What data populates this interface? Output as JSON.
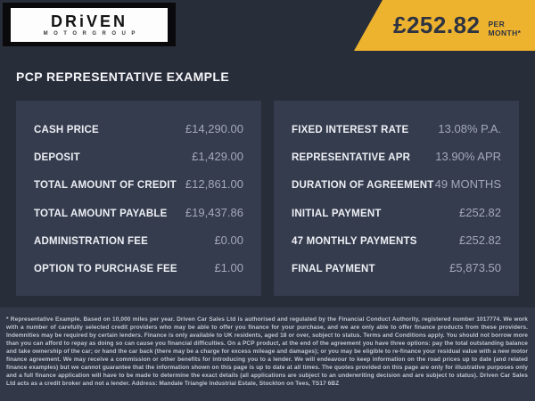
{
  "header": {
    "logo": {
      "brand": "DRiVEN",
      "sub": "MOTORGROUP"
    },
    "price_banner": {
      "amount": "£252.82",
      "period": "PER MONTH*"
    }
  },
  "page_title": "PCP REPRESENTATIVE EXAMPLE",
  "finance": {
    "left_rows": [
      {
        "label": "CASH PRICE",
        "value": "£14,290.00"
      },
      {
        "label": "DEPOSIT",
        "value": "£1,429.00"
      },
      {
        "label": "TOTAL AMOUNT OF CREDIT",
        "value": "£12,861.00"
      },
      {
        "label": "TOTAL AMOUNT PAYABLE",
        "value": "£19,437.86"
      },
      {
        "label": "ADMINISTRATION FEE",
        "value": "£0.00"
      },
      {
        "label": "OPTION TO PURCHASE FEE",
        "value": "£1.00"
      }
    ],
    "right_rows": [
      {
        "label": "FIXED INTEREST RATE",
        "value": "13.08% P.A."
      },
      {
        "label": "REPRESENTATIVE APR",
        "value": "13.90% APR"
      },
      {
        "label": "DURATION OF AGREEMENT",
        "value": "49 MONTHS"
      },
      {
        "label": "INITIAL PAYMENT",
        "value": "£252.82"
      },
      {
        "label": "47 MONTHLY PAYMENTS",
        "value": "£252.82"
      },
      {
        "label": "FINAL PAYMENT",
        "value": "£5,873.50"
      }
    ]
  },
  "footer": {
    "disclaimer": "* Representative Example. Based on 10,000 miles per year. Driven Car Sales Ltd is authorised and regulated by the Financial Conduct Authority, registered number 1017774. We work with a number of carefully selected credit providers who may be able to offer you finance for your purchase, and we are only able to offer finance products from these providers. Indemnities may be required by certain lenders. Finance is only available to UK residents, aged 18 or over, subject to status. Terms and Conditions apply. You should not borrow more than you can afford to repay as doing so can cause you financial difficulties. On a PCP product, at the end of the agreement you have three options: pay the total outstanding balance and take ownership of the car; or hand the car back (there may be a charge for excess mileage and damages); or you may be eligible to re-finance your residual value with a new motor finance agreement. We may receive a commission or other benefits for introducing you to a lender. We will endeavour to keep information on the road prices up to date (and related finance examples) but we cannot guarantee that the information shown on this page is up to date at all times. The quotes provided on this page are only for illustrative purposes only and a full finance application will have to be made to determine the exact details (all applications are subject to an underwriting decision and are subject to status). Driven Car Sales Ltd acts as a credit broker and not a lender. Address: Mandale Triangle Industrial Estate, Stockton on Tees, TS17 6BZ"
  },
  "colors": {
    "accent_yellow": "#eeb32e",
    "page_background": "#282d3a",
    "panel_background": "#353c4e",
    "footer_background": "#323848",
    "value_text": "#a3a9b9"
  }
}
